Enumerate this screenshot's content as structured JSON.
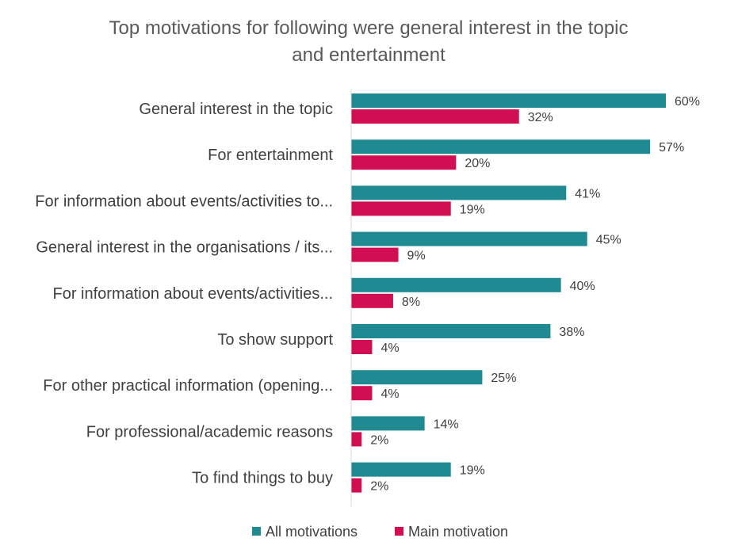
{
  "chart_data": {
    "type": "bar",
    "orientation": "horizontal",
    "title": "Top motivations for following were general interest in the topic and entertainment",
    "title_lines": [
      "Top motivations for following were general interest in the topic",
      "and entertainment"
    ],
    "categories": [
      "General interest in the topic",
      "For entertainment",
      "For information about events/activities to...",
      "General interest in the organisations / its...",
      "For information about events/activities...",
      "To show support",
      "For other practical information (opening...",
      "For professional/academic reasons",
      "To find things to buy"
    ],
    "series": [
      {
        "name": "All motivations",
        "color": "#1F8A91",
        "values": [
          60,
          57,
          41,
          45,
          40,
          38,
          25,
          14,
          19
        ],
        "labels": [
          "60%",
          "57%",
          "41%",
          "45%",
          "40%",
          "38%",
          "25%",
          "14%",
          "19%"
        ]
      },
      {
        "name": "Main motivation",
        "color": "#D10E52",
        "values": [
          32,
          20,
          19,
          9,
          8,
          4,
          4,
          2,
          2
        ],
        "labels": [
          "32%",
          "20%",
          "19%",
          "9%",
          "8%",
          "4%",
          "4%",
          "2%",
          "2%"
        ]
      }
    ],
    "value_unit": "%",
    "xlim": [
      0,
      60
    ],
    "grid": false,
    "legend_position": "bottom"
  }
}
